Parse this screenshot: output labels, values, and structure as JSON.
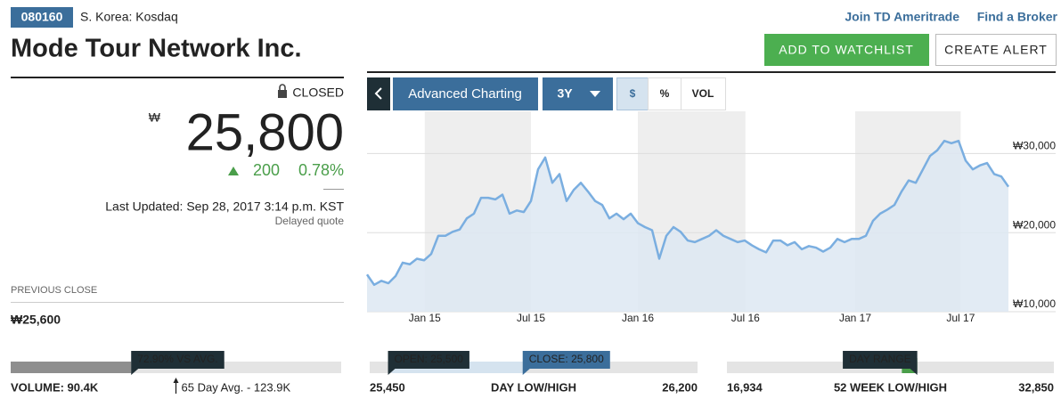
{
  "header": {
    "ticker": "080160",
    "exchange": "S. Korea: Kosdaq",
    "name": "Mode Tour Network Inc.",
    "links": [
      "Join TD Ameritrade",
      "Find a Broker"
    ],
    "buttons": [
      "ADD TO WATCHLIST",
      "CREATE ALERT"
    ]
  },
  "quote": {
    "status": "CLOSED",
    "currency": "₩",
    "price": "25,800",
    "change": "200",
    "change_pct": "0.78%",
    "last_updated": "Last Updated: Sep 28, 2017 3:14 p.m. KST",
    "delayed": "Delayed quote",
    "previous_close_label": "PREVIOUS CLOSE",
    "previous_close": "₩25,600"
  },
  "toolbar": {
    "advanced": "Advanced Charting",
    "range": "3Y",
    "modes": [
      "$",
      "%",
      "VOL"
    ]
  },
  "chart": {
    "type": "area",
    "color": "#7aaee0",
    "fill": "#dde8f2",
    "values": [
      14700,
      13400,
      13900,
      13600,
      14500,
      16200,
      16000,
      16700,
      16500,
      17300,
      19600,
      19600,
      20100,
      20400,
      21800,
      22400,
      24400,
      24400,
      24200,
      24800,
      22400,
      22800,
      22600,
      24000,
      28000,
      29500,
      26300,
      27400,
      24000,
      25400,
      26300,
      25200,
      24000,
      23500,
      21800,
      22400,
      21700,
      22400,
      21200,
      20700,
      20300,
      16700,
      19600,
      20700,
      20100,
      19000,
      18800,
      19200,
      19600,
      20300,
      19600,
      19200,
      18800,
      19000,
      18400,
      17900,
      17500,
      19000,
      19000,
      18400,
      18800,
      17900,
      18300,
      18100,
      17600,
      18100,
      19200,
      18800,
      19200,
      19200,
      19600,
      21500,
      22400,
      22900,
      23500,
      25200,
      26600,
      26300,
      28000,
      29700,
      30400,
      31600,
      31300,
      31600,
      29100,
      28000,
      28500,
      28800,
      27400,
      27100,
      25800
    ],
    "xlim": [
      0,
      90
    ],
    "xticks": [
      {
        "value": 8.1,
        "label": "Jan 15"
      },
      {
        "value": 23,
        "label": "Jul 15"
      },
      {
        "value": 38,
        "label": "Jan 16"
      },
      {
        "value": 53.1,
        "label": "Jul 16"
      },
      {
        "value": 68.5,
        "label": "Jan 17"
      },
      {
        "value": 83.3,
        "label": "Jul 17"
      }
    ],
    "ylim": [
      10000,
      35000
    ],
    "yticks": [
      {
        "value": 10000,
        "label": "₩10,000"
      },
      {
        "value": 20000,
        "label": "₩20,000"
      },
      {
        "value": 30000,
        "label": "₩30,000"
      }
    ],
    "grid": true
  },
  "volume": {
    "label": "VOLUME: 90.4K",
    "vs_avg": {
      "value": 72.9,
      "label": "72.90% VS AVG."
    },
    "avg_label": "65 Day Avg. - 123.9K"
  },
  "day_range": {
    "title": "DAY LOW/HIGH",
    "low": {
      "value": 25450,
      "label": "25,450"
    },
    "high": {
      "value": 26200,
      "label": "26,200"
    },
    "open": {
      "value": 25500,
      "label": "OPEN: 25,500"
    },
    "close": {
      "value": 25800,
      "label": "CLOSE: 25,800"
    }
  },
  "week52": {
    "title": "52 WEEK LOW/HIGH",
    "low": {
      "value": 16934,
      "label": "16,934"
    },
    "high": {
      "value": 32850,
      "label": "32,850"
    },
    "marker": "DAY RANGE"
  }
}
